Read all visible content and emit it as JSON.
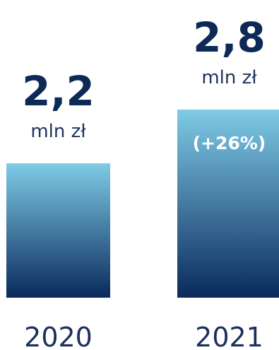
{
  "chart_data": {
    "type": "bar",
    "categories": [
      "2020",
      "2021"
    ],
    "values": [
      2.2,
      2.8
    ],
    "value_labels": [
      "2,2",
      "2,8"
    ],
    "unit": "mln zł",
    "change_label": "(+26%)",
    "xlabel": "",
    "ylabel": "",
    "ylim": [
      0,
      3.0
    ],
    "grid": false,
    "legend": "none",
    "colors": {
      "bar_top": "#7fcbe6",
      "bar_bottom": "#0a2a5c",
      "value_text": "#0d2a56",
      "unit_text": "#1f3560",
      "year_text": "#1a2f5a",
      "change_text": "#ffffff"
    }
  }
}
